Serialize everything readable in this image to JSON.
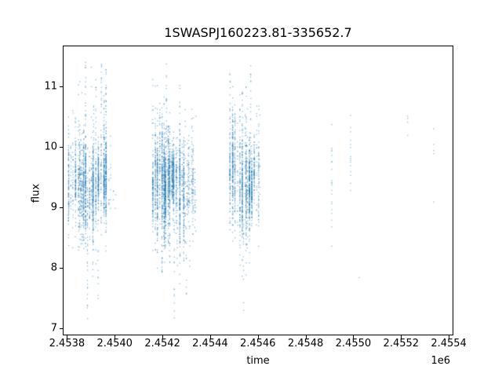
{
  "figure": {
    "title": "1SWASPJ160223.81-335652.7",
    "xlabel": "time",
    "ylabel": "flux",
    "x_offset_label": "1e6"
  },
  "chart_data": {
    "type": "scatter",
    "title": "1SWASPJ160223.81-335652.7",
    "xlabel": "time",
    "ylabel": "flux",
    "x_offset_factor": "1e6",
    "legend": "none",
    "grid": false,
    "marker_color": "#1f77b4",
    "marker_alpha": 0.5,
    "marker_size_px": 1.3,
    "xlim": [
      2453784,
      2455421
    ],
    "ylim": [
      6.89,
      11.67
    ],
    "x_ticks": [
      2453800,
      2454000,
      2454200,
      2454400,
      2454600,
      2454800,
      2455000,
      2455200,
      2455400
    ],
    "x_tick_labels": [
      "2.4538",
      "2.4540",
      "2.4542",
      "2.4544",
      "2.4546",
      "2.4548",
      "2.4550",
      "2.4552",
      "2.4554"
    ],
    "y_ticks": [
      7,
      8,
      9,
      10,
      11
    ],
    "y_tick_labels": [
      "7",
      "8",
      "9",
      "10",
      "11"
    ],
    "clusters": [
      {
        "name": "season-1",
        "seed": 11,
        "t_start": 2453807,
        "t_dense_end": 2453975,
        "t_end": 2454007,
        "flux_mean": 9.35,
        "flux_min": 7.08,
        "flux_max": 11.47,
        "night_step_min": 4,
        "night_step_rand": 9,
        "streaks_extra": [
          {
            "t": 2453944,
            "f_min": 9.6,
            "f_max": 11.47,
            "n": 26
          },
          {
            "t": 2453912,
            "f_min": 9.7,
            "f_max": 10.95,
            "n": 14
          },
          {
            "t": 2453886,
            "f_min": 7.08,
            "f_max": 8.9,
            "n": 20
          },
          {
            "t": 2453930,
            "f_min": 7.35,
            "f_max": 8.8,
            "n": 12
          }
        ]
      },
      {
        "name": "season-2",
        "seed": 22,
        "t_start": 2454160,
        "t_dense_end": 2454340,
        "t_end": 2454345,
        "flux_mean": 9.4,
        "flux_min": 7.1,
        "flux_max": 11.45,
        "night_step_min": 4,
        "night_step_rand": 8,
        "streaks_extra": [
          {
            "t": 2454217,
            "f_min": 9.6,
            "f_max": 11.45,
            "n": 26
          },
          {
            "t": 2454250,
            "f_min": 7.1,
            "f_max": 8.8,
            "n": 18
          },
          {
            "t": 2454300,
            "f_min": 7.5,
            "f_max": 8.7,
            "n": 10
          }
        ]
      },
      {
        "name": "season-3",
        "seed": 33,
        "t_start": 2454483,
        "t_dense_end": 2454604,
        "t_end": 2454608,
        "flux_mean": 9.45,
        "flux_min": 7.15,
        "flux_max": 11.4,
        "night_step_min": 4,
        "night_step_rand": 8,
        "streaks_extra": [
          {
            "t": 2454570,
            "f_min": 9.7,
            "f_max": 11.4,
            "n": 22
          },
          {
            "t": 2454540,
            "f_min": 7.15,
            "f_max": 8.8,
            "n": 14
          }
        ]
      }
    ],
    "sparse_columns": [
      {
        "t": 2454910,
        "fluxes": [
          10.37,
          9.98,
          9.95,
          9.93,
          9.86,
          9.76,
          9.75,
          9.63,
          9.44,
          9.41,
          9.4,
          9.37,
          9.28,
          9.22,
          9.09,
          9.06,
          8.96,
          8.9,
          8.79,
          8.68,
          8.36
        ]
      },
      {
        "t": 2454989,
        "fluxes": [
          10.52,
          10.32,
          10.25,
          10.11,
          10.04,
          9.99,
          9.84,
          9.81,
          9.78,
          9.75,
          9.69,
          9.59,
          9.53,
          9.4,
          9.28
        ]
      },
      {
        "t": 2455228,
        "fluxes": [
          10.51,
          10.47,
          10.41,
          10.19
        ]
      },
      {
        "t": 2455337,
        "fluxes": [
          10.3,
          10.04,
          9.94,
          9.89,
          9.09
        ]
      }
    ],
    "outlier_points": [
      [
        2455025,
        7.84
      ]
    ]
  }
}
